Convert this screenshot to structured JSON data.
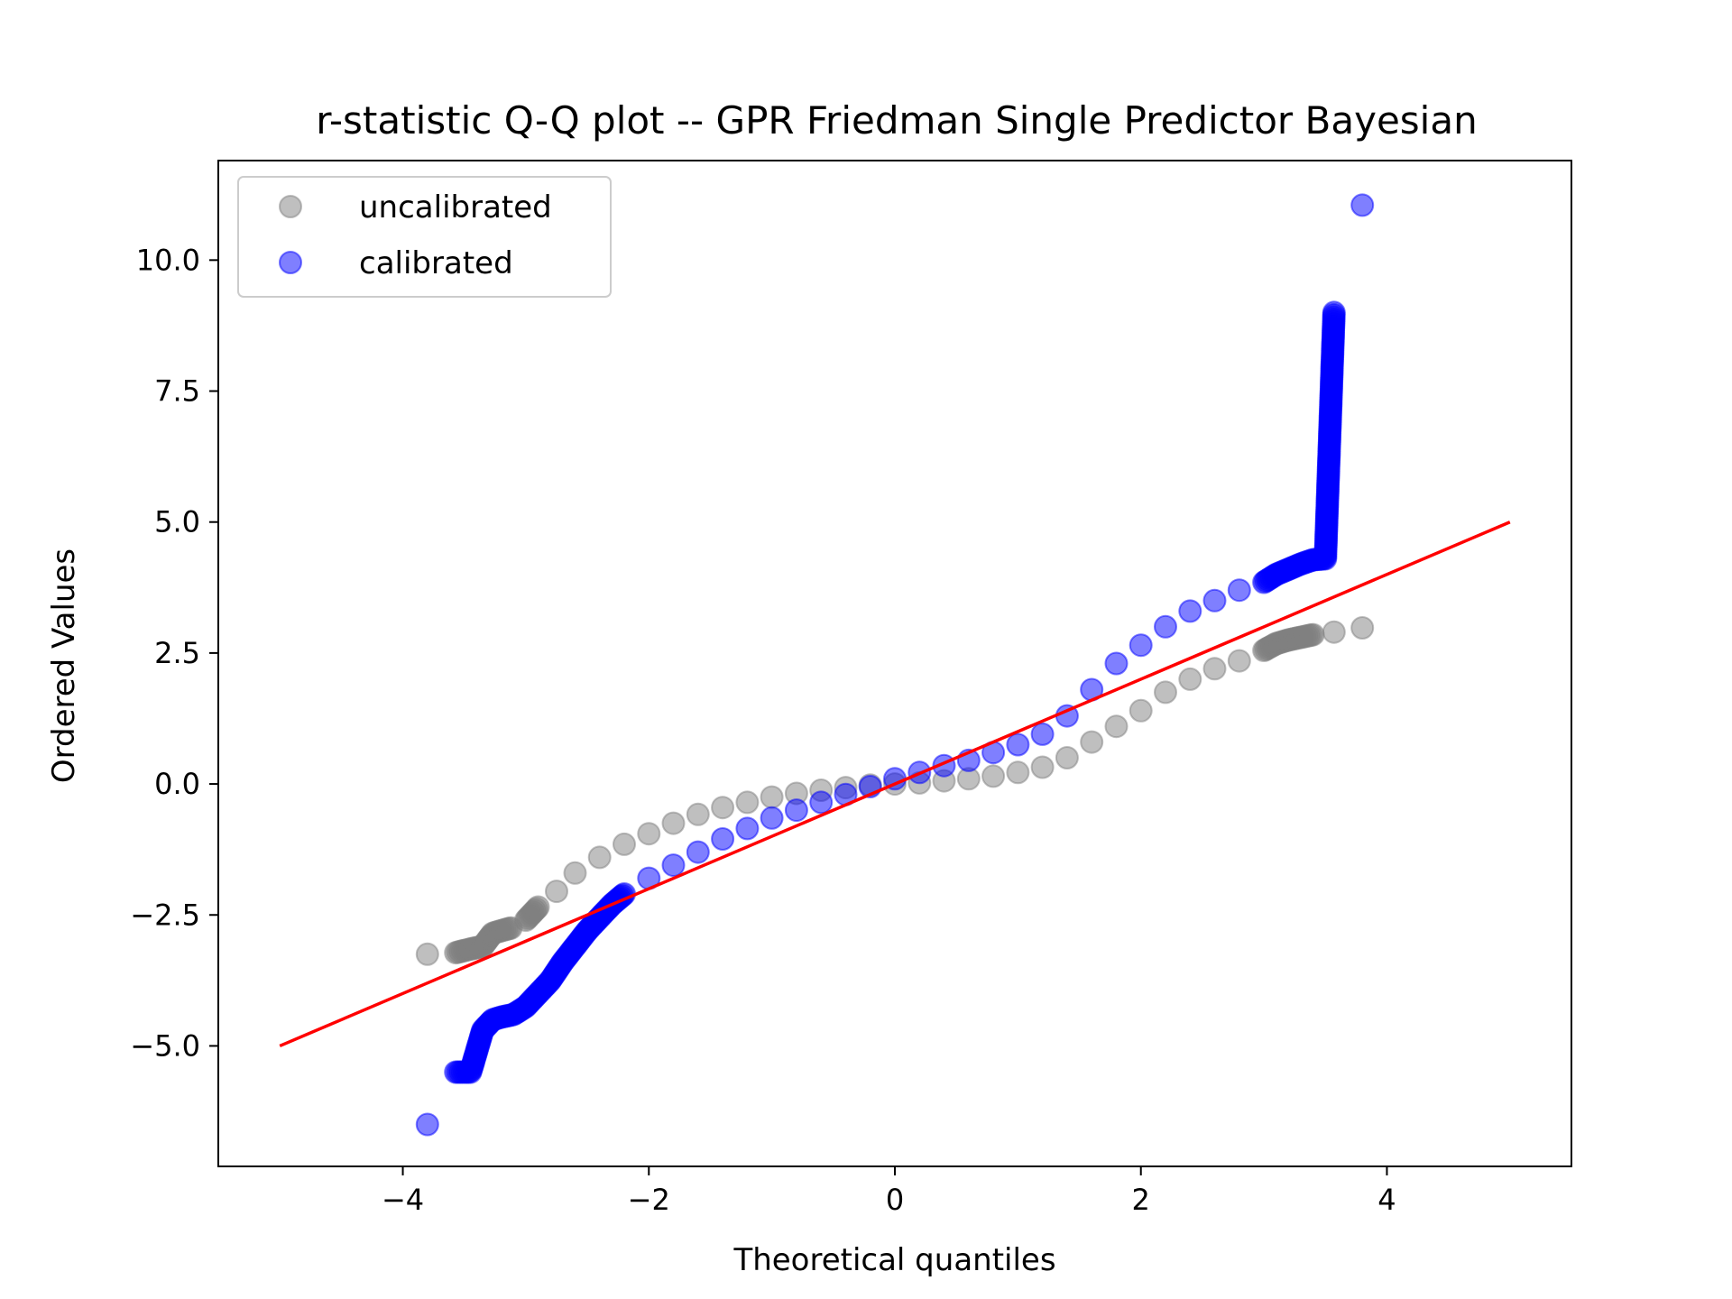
{
  "chart_data": {
    "type": "scatter",
    "title": "r-statistic Q-Q plot -- GPR Friedman Single Predictor Bayesian",
    "xlabel": "Theoretical quantiles",
    "ylabel": "Ordered Values",
    "xlim": [
      -5.5,
      5.5
    ],
    "ylim": [
      -7.3,
      11.9
    ],
    "x_ticks": [
      -4,
      -2,
      0,
      2,
      4
    ],
    "x_tick_labels": [
      "−4",
      "−2",
      "0",
      "2",
      "4"
    ],
    "y_ticks": [
      -5.0,
      -2.5,
      0.0,
      2.5,
      5.0,
      7.5,
      10.0
    ],
    "y_tick_labels": [
      "−5.0",
      "−2.5",
      "0.0",
      "2.5",
      "5.0",
      "7.5",
      "10.0"
    ],
    "legend": {
      "placement": "top-left",
      "entries": [
        "uncalibrated",
        "calibrated"
      ]
    },
    "grid": false,
    "series": [
      {
        "name": "uncalibrated",
        "color": "#808080",
        "alpha": 0.5,
        "points": [
          [
            -3.8,
            -3.25
          ],
          [
            -3.57,
            -3.22
          ],
          [
            -3.45,
            -3.15
          ],
          [
            -3.35,
            -3.1
          ],
          [
            -3.27,
            -2.85
          ],
          [
            -3.2,
            -2.8
          ],
          [
            -3.12,
            -2.75
          ],
          [
            -3.0,
            -2.6
          ],
          [
            -2.9,
            -2.35
          ],
          [
            -2.75,
            -2.05
          ],
          [
            -2.6,
            -1.7
          ],
          [
            -2.4,
            -1.4
          ],
          [
            -2.2,
            -1.15
          ],
          [
            -2.0,
            -0.95
          ],
          [
            -1.8,
            -0.75
          ],
          [
            -1.6,
            -0.58
          ],
          [
            -1.4,
            -0.45
          ],
          [
            -1.2,
            -0.35
          ],
          [
            -1.0,
            -0.25
          ],
          [
            -0.8,
            -0.18
          ],
          [
            -0.6,
            -0.12
          ],
          [
            -0.4,
            -0.07
          ],
          [
            -0.2,
            -0.02
          ],
          [
            0.0,
            0.0
          ],
          [
            0.2,
            0.02
          ],
          [
            0.4,
            0.06
          ],
          [
            0.6,
            0.1
          ],
          [
            0.8,
            0.15
          ],
          [
            1.0,
            0.22
          ],
          [
            1.2,
            0.32
          ],
          [
            1.4,
            0.5
          ],
          [
            1.6,
            0.8
          ],
          [
            1.8,
            1.1
          ],
          [
            2.0,
            1.4
          ],
          [
            2.2,
            1.75
          ],
          [
            2.4,
            2.0
          ],
          [
            2.6,
            2.2
          ],
          [
            2.8,
            2.35
          ],
          [
            3.0,
            2.55
          ],
          [
            3.1,
            2.68
          ],
          [
            3.2,
            2.75
          ],
          [
            3.3,
            2.8
          ],
          [
            3.4,
            2.85
          ],
          [
            3.57,
            2.9
          ],
          [
            3.8,
            2.98
          ]
        ]
      },
      {
        "name": "calibrated",
        "color": "#0000ff",
        "alpha": 0.5,
        "points": [
          [
            -3.8,
            -6.5
          ],
          [
            -3.57,
            -5.5
          ],
          [
            -3.45,
            -5.5
          ],
          [
            -3.35,
            -4.7
          ],
          [
            -3.27,
            -4.5
          ],
          [
            -3.2,
            -4.45
          ],
          [
            -3.1,
            -4.4
          ],
          [
            -3.0,
            -4.25
          ],
          [
            -2.9,
            -4.0
          ],
          [
            -2.8,
            -3.75
          ],
          [
            -2.7,
            -3.4
          ],
          [
            -2.6,
            -3.1
          ],
          [
            -2.5,
            -2.8
          ],
          [
            -2.4,
            -2.55
          ],
          [
            -2.3,
            -2.3
          ],
          [
            -2.2,
            -2.1
          ],
          [
            -2.0,
            -1.8
          ],
          [
            -1.8,
            -1.55
          ],
          [
            -1.6,
            -1.3
          ],
          [
            -1.4,
            -1.05
          ],
          [
            -1.2,
            -0.85
          ],
          [
            -1.0,
            -0.65
          ],
          [
            -0.8,
            -0.5
          ],
          [
            -0.6,
            -0.35
          ],
          [
            -0.4,
            -0.2
          ],
          [
            -0.2,
            -0.05
          ],
          [
            0.0,
            0.1
          ],
          [
            0.2,
            0.22
          ],
          [
            0.4,
            0.35
          ],
          [
            0.6,
            0.45
          ],
          [
            0.8,
            0.6
          ],
          [
            1.0,
            0.75
          ],
          [
            1.2,
            0.95
          ],
          [
            1.4,
            1.3
          ],
          [
            1.6,
            1.8
          ],
          [
            1.8,
            2.3
          ],
          [
            2.0,
            2.65
          ],
          [
            2.2,
            3.0
          ],
          [
            2.4,
            3.3
          ],
          [
            2.6,
            3.5
          ],
          [
            2.8,
            3.7
          ],
          [
            3.0,
            3.85
          ],
          [
            3.1,
            4.0
          ],
          [
            3.2,
            4.1
          ],
          [
            3.3,
            4.2
          ],
          [
            3.4,
            4.28
          ],
          [
            3.5,
            4.3
          ],
          [
            3.57,
            9.0
          ],
          [
            3.8,
            11.05
          ]
        ]
      }
    ],
    "reference_line": {
      "color": "#ff0000",
      "from": [
        -5.0,
        -5.0
      ],
      "to": [
        5.0,
        5.0
      ]
    }
  }
}
